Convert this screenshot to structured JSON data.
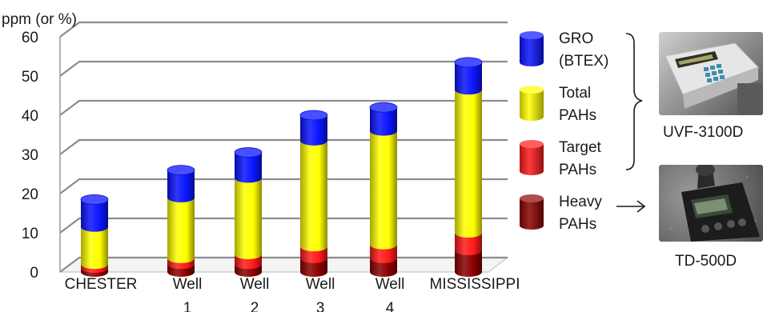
{
  "chart_data": {
    "type": "bar",
    "stacked": true,
    "ylabel": "ppm (or %)",
    "ylim": [
      0,
      60
    ],
    "yticks": [
      0,
      10,
      20,
      30,
      40,
      50,
      60
    ],
    "grid": true,
    "legend_position": "right",
    "categories": [
      "CHESTER",
      "Well 1",
      "Well 2",
      "Well 3",
      "Well 4",
      "MISSISSIPPI"
    ],
    "category_lines": [
      [
        "CHESTER"
      ],
      [
        "Well",
        "1"
      ],
      [
        "Well",
        "2"
      ],
      [
        "Well",
        "3"
      ],
      [
        "Well",
        "4"
      ],
      [
        "MISSISSIPPI"
      ]
    ],
    "series": [
      {
        "name": "Heavy PAHs",
        "legend_lines": [
          "Heavy",
          "PAHs"
        ],
        "color": "#8b0000",
        "values": [
          1,
          2,
          2,
          3.5,
          3.5,
          5.5
        ]
      },
      {
        "name": "Target PAHs",
        "legend_lines": [
          "Target",
          "PAHs"
        ],
        "color": "#ff1a1a",
        "values": [
          1,
          1.5,
          2.5,
          3,
          3.5,
          4.5
        ]
      },
      {
        "name": "Total PAHs",
        "legend_lines": [
          "Total",
          "PAHs"
        ],
        "color": "#ffff00",
        "values": [
          9.5,
          15.5,
          19.5,
          27,
          29,
          36.5
        ]
      },
      {
        "name": "GRO (BTEX)",
        "legend_lines": [
          "GRO",
          "(BTEX)"
        ],
        "color": "#0a14ff",
        "values": [
          7,
          7,
          6.5,
          6.5,
          6,
          7
        ]
      }
    ]
  },
  "instruments": [
    {
      "label": "UVF-3100D"
    },
    {
      "label": "TD-500D"
    }
  ]
}
